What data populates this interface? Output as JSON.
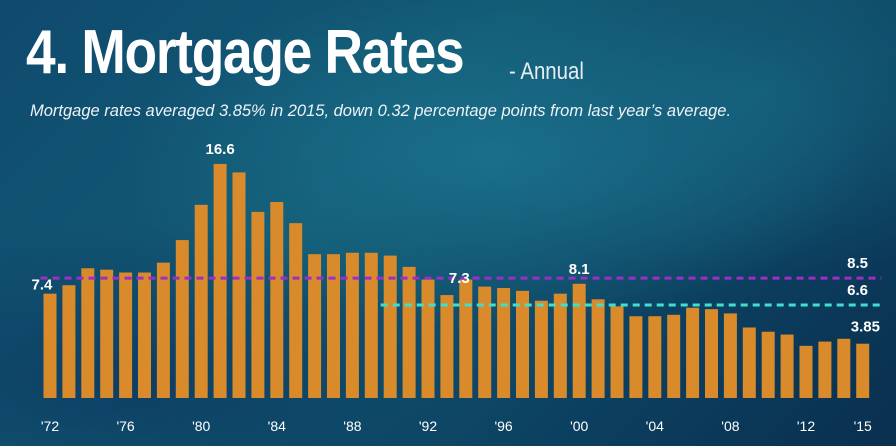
{
  "header": {
    "title": "4. Mortgage Rates",
    "subtitle": "- Annual",
    "caption": "Mortgage rates averaged 3.85% in 2015, down 0.32 percentage points from last year’s average."
  },
  "colors": {
    "bar": "#d98a2b",
    "ref_line_1": "#9b2fc9",
    "ref_line_2": "#3fe0d0"
  },
  "chart_data": {
    "type": "bar",
    "categories": [
      "1972",
      "1973",
      "1974",
      "1975",
      "1976",
      "1977",
      "1978",
      "1979",
      "1980",
      "1981",
      "1982",
      "1983",
      "1984",
      "1985",
      "1986",
      "1987",
      "1988",
      "1989",
      "1990",
      "1991",
      "1992",
      "1993",
      "1994",
      "1995",
      "1996",
      "1997",
      "1998",
      "1999",
      "2000",
      "2001",
      "2002",
      "2003",
      "2004",
      "2005",
      "2006",
      "2007",
      "2008",
      "2009",
      "2010",
      "2011",
      "2012",
      "2013",
      "2014",
      "2015"
    ],
    "values": [
      7.4,
      8.0,
      9.2,
      9.1,
      8.9,
      8.9,
      9.6,
      11.2,
      13.7,
      16.6,
      16.0,
      13.2,
      13.9,
      12.4,
      10.2,
      10.2,
      10.3,
      10.3,
      10.1,
      9.3,
      8.4,
      7.3,
      8.4,
      7.9,
      7.8,
      7.6,
      6.9,
      7.4,
      8.1,
      7.0,
      6.5,
      5.8,
      5.8,
      5.9,
      6.4,
      6.3,
      6.0,
      5.0,
      4.7,
      4.5,
      3.7,
      4.0,
      4.2,
      3.85
    ],
    "x_tick_labels": [
      "'72",
      "'76",
      "'80",
      "'84",
      "'88",
      "'92",
      "'96",
      "'00",
      "'04",
      "'08",
      "'12",
      "'15"
    ],
    "x_tick_years": [
      "1972",
      "1976",
      "1980",
      "1984",
      "1988",
      "1992",
      "1996",
      "2000",
      "2004",
      "2008",
      "2012",
      "2015"
    ],
    "data_labels": [
      {
        "category": "1972",
        "text": "7.4"
      },
      {
        "category": "1981",
        "text": "16.6"
      },
      {
        "category": "1993",
        "text": "7.3"
      },
      {
        "category": "2000",
        "text": "8.1"
      },
      {
        "category": "2015",
        "text": "3.85"
      }
    ],
    "reference_lines": [
      {
        "value": 8.5,
        "from": "1972",
        "to": "2015",
        "label": "8.5",
        "color": "#9b2fc9"
      },
      {
        "value": 6.6,
        "from": "1990",
        "to": "2015",
        "label": "6.6",
        "color": "#3fe0d0"
      }
    ],
    "ylim": [
      0,
      18
    ],
    "title": "4. Mortgage Rates",
    "xlabel": "",
    "ylabel": "",
    "grid": false
  }
}
